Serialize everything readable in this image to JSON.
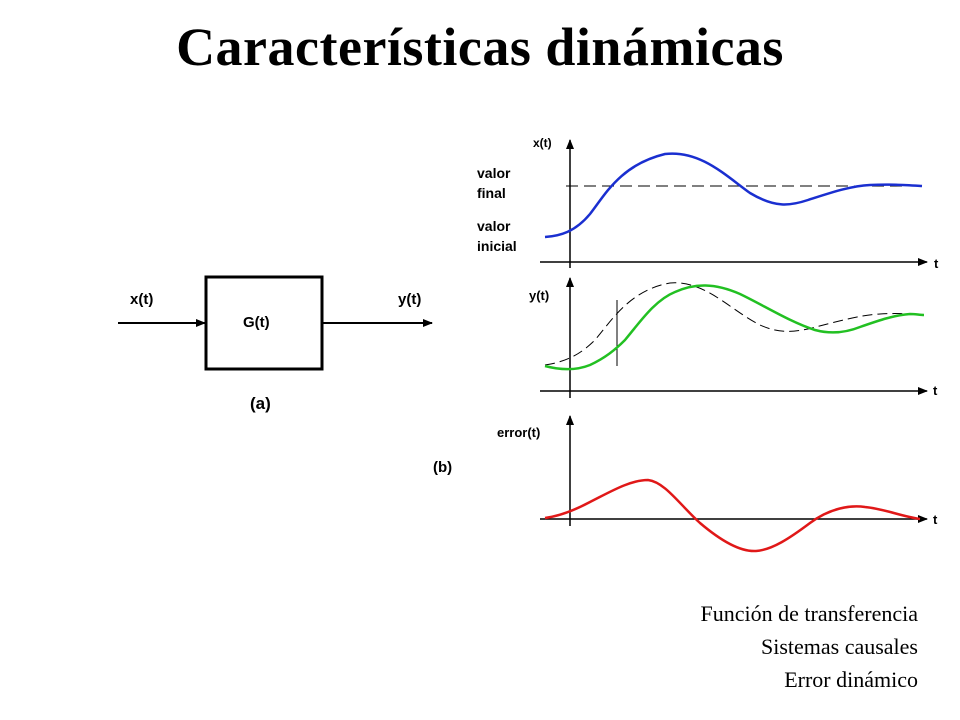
{
  "title": "Características dinámicas",
  "block_diagram": {
    "input_label": "x(t)",
    "output_label": "y(t)",
    "block_label": "G(t)",
    "caption": "(a)"
  },
  "plots": {
    "caption": "(b)",
    "time_label": "t",
    "x": {
      "axis_label": "x(t)",
      "final_label_line1": "valor",
      "final_label_line2": "final",
      "initial_label_line1": "valor",
      "initial_label_line2": "inicial",
      "color": "#1a2fd0"
    },
    "y": {
      "axis_label": "y(t)",
      "color": "#22c022"
    },
    "error": {
      "axis_label": "error(t)",
      "color": "#e01818"
    }
  },
  "notes": [
    "Función de transferencia",
    "Sistemas causales",
    "Error dinámico"
  ]
}
